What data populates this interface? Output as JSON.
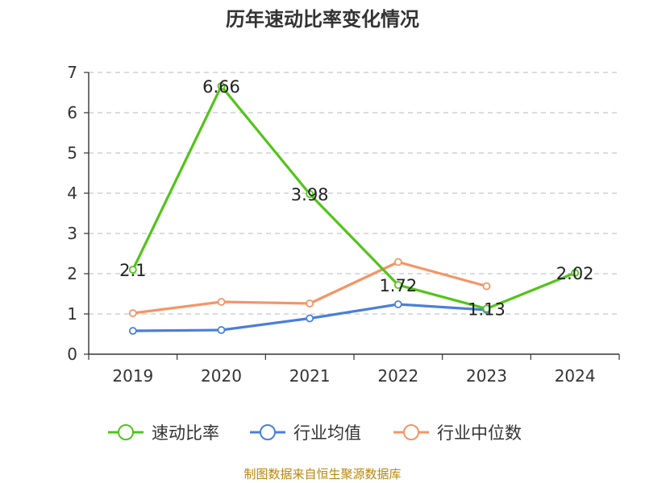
{
  "title": "历年速动比率变化情况",
  "source": "制图数据来自恒生聚源数据库",
  "chart_data": {
    "type": "line",
    "title": "历年速动比率变化情况",
    "categories": [
      "2019",
      "2020",
      "2021",
      "2022",
      "2023",
      "2024"
    ],
    "ylim": [
      0,
      7
    ],
    "yticks": [
      "0",
      "1",
      "2",
      "3",
      "4",
      "5",
      "6",
      "7"
    ],
    "grid": true,
    "legend_position": "bottom",
    "series": [
      {
        "name": "速动比率",
        "color": "#52c41a",
        "values": [
          2.1,
          6.66,
          3.98,
          1.72,
          1.13,
          2.02
        ],
        "labels": [
          "2.1",
          "6.66",
          "3.98",
          "1.72",
          "1.13",
          "2.02"
        ]
      },
      {
        "name": "行业均值",
        "color": "#4a7fd9",
        "values": [
          0.58,
          0.6,
          0.89,
          1.24,
          1.1,
          null
        ]
      },
      {
        "name": "行业中位数",
        "color": "#f59466",
        "values": [
          1.02,
          1.3,
          1.26,
          2.29,
          1.69,
          null
        ]
      }
    ]
  }
}
